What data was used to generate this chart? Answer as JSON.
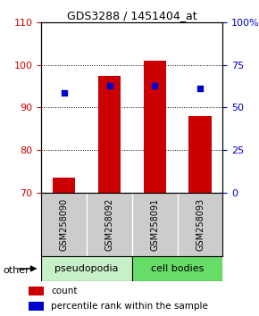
{
  "title": "GDS3288 / 1451404_at",
  "samples": [
    "GSM258090",
    "GSM258092",
    "GSM258091",
    "GSM258093"
  ],
  "bar_color": "#cc0000",
  "dot_color": "#0000cc",
  "count_values": [
    73.5,
    97.5,
    101.0,
    88.0
  ],
  "percentile_values": [
    93.5,
    95.0,
    95.2,
    94.5
  ],
  "ylim_left": [
    70,
    110
  ],
  "ylim_right": [
    0,
    100
  ],
  "yticks_left": [
    70,
    80,
    90,
    100,
    110
  ],
  "yticks_right": [
    0,
    25,
    50,
    75,
    100
  ],
  "ytick_labels_right": [
    "0",
    "25",
    "50",
    "75",
    "100%"
  ],
  "bar_width": 0.5,
  "background_color": "#ffffff",
  "left_tick_color": "#cc0000",
  "right_tick_color": "#0000cc",
  "pseudopodia_color": "#c8f0c8",
  "cell_bodies_color": "#66dd66",
  "sample_label_bg": "#cccccc"
}
